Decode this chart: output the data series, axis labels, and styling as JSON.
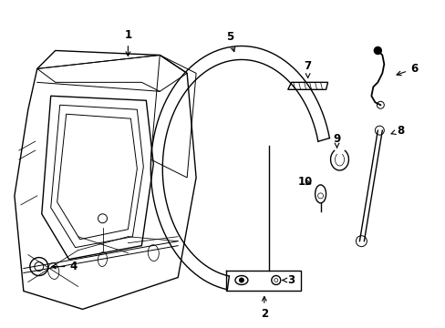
{
  "bg_color": "#ffffff",
  "line_color": "#000000",
  "figsize": [
    4.89,
    3.6
  ],
  "dpi": 100,
  "font_size": 8.5
}
